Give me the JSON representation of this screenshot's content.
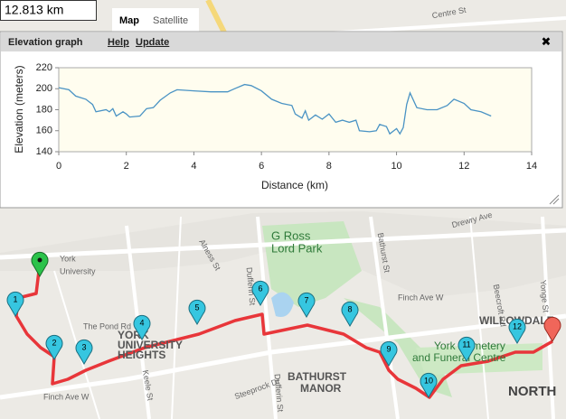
{
  "distance": "12.813 km",
  "map_tabs": [
    "Map",
    "Satellite"
  ],
  "panel": {
    "title": "Elevation graph",
    "links": [
      "Help",
      "Update"
    ],
    "close": "✖"
  },
  "chart_data": {
    "type": "line",
    "xlabel": "Distance (km)",
    "ylabel": "Elevation (meters)",
    "xlim": [
      0,
      14
    ],
    "xticks": [
      0,
      2,
      4,
      6,
      8,
      10,
      12,
      14
    ],
    "ylim": [
      140,
      220
    ],
    "yticks": [
      140,
      160,
      180,
      200,
      220
    ],
    "color": "#4a93c4",
    "x": [
      0,
      0.3,
      0.5,
      0.8,
      1.0,
      1.1,
      1.4,
      1.5,
      1.6,
      1.7,
      1.9,
      2.0,
      2.1,
      2.4,
      2.6,
      2.8,
      3.0,
      3.3,
      3.5,
      4.0,
      4.5,
      5.0,
      5.2,
      5.5,
      5.7,
      6.0,
      6.3,
      6.6,
      6.9,
      7.0,
      7.2,
      7.3,
      7.4,
      7.6,
      7.8,
      8.0,
      8.2,
      8.4,
      8.6,
      8.8,
      8.9,
      9.2,
      9.4,
      9.5,
      9.7,
      9.8,
      10.0,
      10.1,
      10.2,
      10.3,
      10.4,
      10.6,
      10.9,
      11.2,
      11.5,
      11.7,
      12.0,
      12.2,
      12.5,
      12.8
    ],
    "values": [
      201,
      199,
      193,
      190,
      185,
      178,
      180,
      178,
      181,
      174,
      178,
      176,
      173,
      174,
      181,
      182,
      189,
      196,
      199,
      198,
      197,
      197,
      200,
      204,
      203,
      198,
      190,
      186,
      184,
      176,
      172,
      179,
      170,
      175,
      171,
      176,
      168,
      170,
      168,
      170,
      160,
      159,
      160,
      166,
      164,
      157,
      162,
      157,
      163,
      185,
      196,
      182,
      180,
      180,
      184,
      190,
      186,
      180,
      178,
      174
    ]
  },
  "markers": [
    "1",
    "2",
    "3",
    "4",
    "5",
    "6",
    "7",
    "8",
    "9",
    "10",
    "11",
    "12"
  ],
  "map_labels": [
    "York",
    "University",
    "The Pond Rd",
    "YORK",
    "UNIVERSITY",
    "HEIGHTS",
    "G Ross",
    "Lord Park",
    "BATHURST",
    "MANOR",
    "York Cemetery",
    "and Funeral Centre",
    "WILLOWDALE",
    "NORTH",
    "Finch Ave W",
    "Finch Ave W",
    "Keele St",
    "Dufferin St",
    "Dufferin St",
    "Bathurst St",
    "Alness St",
    "Drewry Ave",
    "Beecroft Rd",
    "Yonge St",
    "Centre St",
    "Steeprock Dr"
  ]
}
